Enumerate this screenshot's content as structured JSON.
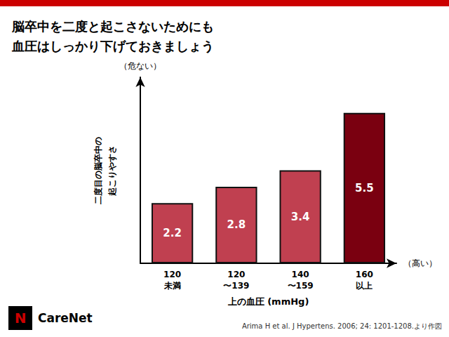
{
  "chart_data": {
    "type": "bar",
    "title": "脳卒中を二度と起こさないためにも\n血圧はしっかり下げておきましょう",
    "xlabel": "上の血圧 (mmHg)",
    "ylabel": "二度目の脳卒中の\n起こりやすさ",
    "categories": [
      "120\n未満",
      "120\n〜139",
      "140\n〜159",
      "160\n以上"
    ],
    "values": [
      2.2,
      2.8,
      3.4,
      5.5
    ],
    "value_labels": [
      "2.2",
      "2.8",
      "3.4",
      "5.5"
    ],
    "colors": [
      "#c04050",
      "#c04050",
      "#c04050",
      "#7a0010"
    ],
    "data_labels": true,
    "ylim": [
      0,
      6.8
    ],
    "tick_labels": "x",
    "grid": false,
    "annotations": [
      "（危ない）",
      "（高い）",
      "Arima H et al. J Hypertens. 2006; 24: 1201-1208.より作図",
      "N",
      "CareNet"
    ]
  }
}
